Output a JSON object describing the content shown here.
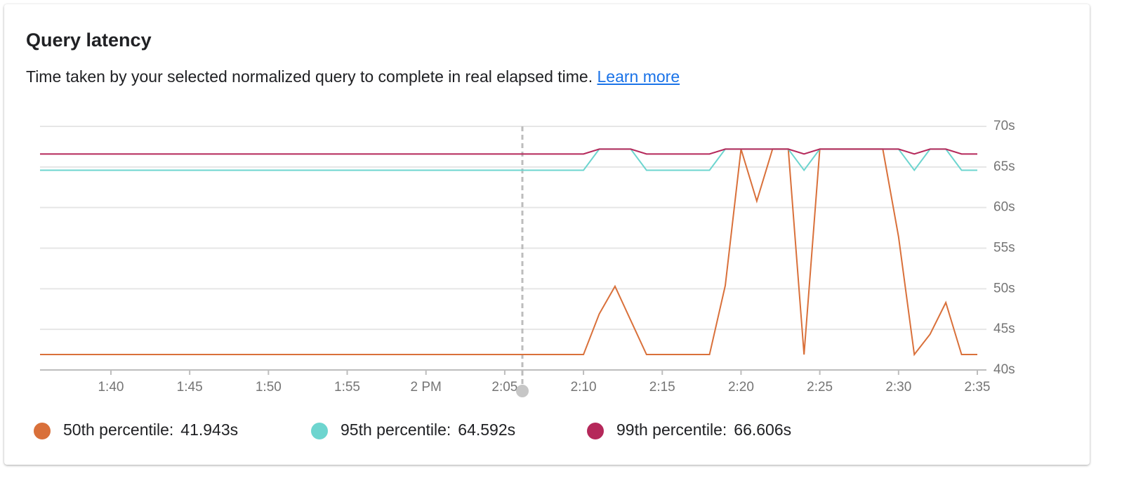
{
  "header": {
    "title": "Query latency",
    "description": "Time taken by your selected normalized query to complete in real elapsed time.",
    "link": "Learn more"
  },
  "chart_data": {
    "type": "line",
    "x": [
      35.5,
      70,
      71,
      72,
      73,
      74,
      75,
      76,
      77,
      78,
      79,
      80,
      81,
      82,
      83,
      84,
      85,
      86,
      87,
      88,
      89,
      90,
      91,
      92,
      93,
      94,
      95
    ],
    "xlim": [
      35.5,
      95
    ],
    "xticks": [
      {
        "value": 40,
        "label": "1:40"
      },
      {
        "value": 45,
        "label": "1:45"
      },
      {
        "value": 50,
        "label": "1:50"
      },
      {
        "value": 55,
        "label": "1:55"
      },
      {
        "value": 60,
        "label": "2 PM"
      },
      {
        "value": 65,
        "label": "2:05"
      },
      {
        "value": 70,
        "label": "2:10"
      },
      {
        "value": 75,
        "label": "2:15"
      },
      {
        "value": 80,
        "label": "2:20"
      },
      {
        "value": 85,
        "label": "2:25"
      },
      {
        "value": 90,
        "label": "2:30"
      },
      {
        "value": 95,
        "label": "2:35"
      }
    ],
    "ylim": [
      40,
      70
    ],
    "yticks": [
      {
        "value": 40,
        "label": "40s"
      },
      {
        "value": 45,
        "label": "45s"
      },
      {
        "value": 50,
        "label": "50s"
      },
      {
        "value": 55,
        "label": "55s"
      },
      {
        "value": 60,
        "label": "60s"
      },
      {
        "value": 65,
        "label": "65s"
      },
      {
        "value": 70,
        "label": "70s"
      }
    ],
    "grid": true,
    "series": [
      {
        "name": "50th percentile:",
        "current": "41.943s",
        "color": "#d9703a",
        "values": [
          41.9,
          41.9,
          46.9,
          50.3,
          46.1,
          41.9,
          41.9,
          41.9,
          41.9,
          41.9,
          50.4,
          67.2,
          60.8,
          67.2,
          67.2,
          41.9,
          67.2,
          67.2,
          67.2,
          67.2,
          67.2,
          56.4,
          41.9,
          44.4,
          48.3,
          41.9,
          41.9
        ]
      },
      {
        "name": "95th percentile:",
        "current": "64.592s",
        "color": "#6dd5cf",
        "values": [
          64.6,
          64.6,
          67.2,
          67.2,
          67.2,
          64.6,
          64.6,
          64.6,
          64.6,
          64.6,
          67.2,
          67.2,
          67.2,
          67.2,
          67.2,
          64.6,
          67.2,
          67.2,
          67.2,
          67.2,
          67.2,
          67.2,
          64.6,
          67.2,
          67.2,
          64.6,
          64.6
        ]
      },
      {
        "name": "99th percentile:",
        "current": "66.606s",
        "color": "#b5285a",
        "values": [
          66.6,
          66.6,
          67.2,
          67.2,
          67.2,
          66.6,
          66.6,
          66.6,
          66.6,
          66.6,
          67.2,
          67.2,
          67.2,
          67.2,
          67.2,
          66.6,
          67.2,
          67.2,
          67.2,
          67.2,
          67.2,
          67.2,
          66.6,
          67.2,
          67.2,
          66.6,
          66.6
        ]
      }
    ]
  }
}
